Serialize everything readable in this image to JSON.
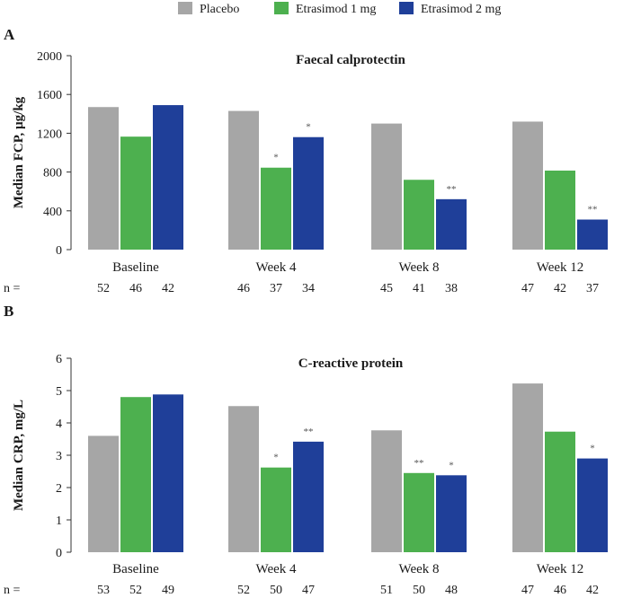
{
  "legend": [
    {
      "name": "Placebo",
      "color": "#a6a6a6"
    },
    {
      "name": "Etrasimod 1 mg",
      "color": "#4db04f"
    },
    {
      "name": "Etrasimod 2 mg",
      "color": "#1f3f99"
    }
  ],
  "n_prefix": "n =",
  "chart_data": [
    {
      "panel": "A",
      "type": "bar",
      "title": "Faecal calprotectin",
      "ylabel": "Median FCP, µg/kg",
      "xlabel": "",
      "ylim": [
        0,
        2000
      ],
      "yticks": [
        "0",
        "400",
        "800",
        "1200",
        "1600",
        "2000"
      ],
      "categories": [
        "Baseline",
        "Week 4",
        "Week 8",
        "Week 12"
      ],
      "series": [
        {
          "name": "Placebo",
          "values": [
            1470,
            1430,
            1300,
            1320
          ],
          "n": [
            "52",
            "46",
            "45",
            "47"
          ],
          "sig": [
            "",
            "",
            "",
            ""
          ]
        },
        {
          "name": "Etrasimod 1 mg",
          "values": [
            1165,
            845,
            720,
            815
          ],
          "n": [
            "46",
            "37",
            "41",
            "42"
          ],
          "sig": [
            "",
            "*",
            "",
            ""
          ]
        },
        {
          "name": "Etrasimod 2 mg",
          "values": [
            1490,
            1160,
            520,
            310
          ],
          "n": [
            "42",
            "34",
            "38",
            "37"
          ],
          "sig": [
            "",
            "*",
            "**",
            "**"
          ]
        }
      ]
    },
    {
      "panel": "B",
      "type": "bar",
      "title": "C-reactive protein",
      "ylabel": "Median CRP, mg/L",
      "xlabel": "",
      "ylim": [
        0,
        6
      ],
      "yticks": [
        "0",
        "1",
        "2",
        "3",
        "4",
        "5",
        "6"
      ],
      "categories": [
        "Baseline",
        "Week 4",
        "Week 8",
        "Week 12"
      ],
      "series": [
        {
          "name": "Placebo",
          "values": [
            3.6,
            4.52,
            3.77,
            5.22
          ],
          "n": [
            "53",
            "52",
            "51",
            "47"
          ],
          "sig": [
            "",
            "",
            "",
            ""
          ]
        },
        {
          "name": "Etrasimod 1 mg",
          "values": [
            4.8,
            2.62,
            2.45,
            3.73
          ],
          "n": [
            "52",
            "50",
            "50",
            "46"
          ],
          "sig": [
            "",
            "*",
            "**",
            ""
          ]
        },
        {
          "name": "Etrasimod 2 mg",
          "values": [
            4.88,
            3.42,
            2.38,
            2.9
          ],
          "n": [
            "49",
            "47",
            "48",
            "42"
          ],
          "sig": [
            "",
            "**",
            "*",
            "*"
          ]
        }
      ]
    }
  ]
}
